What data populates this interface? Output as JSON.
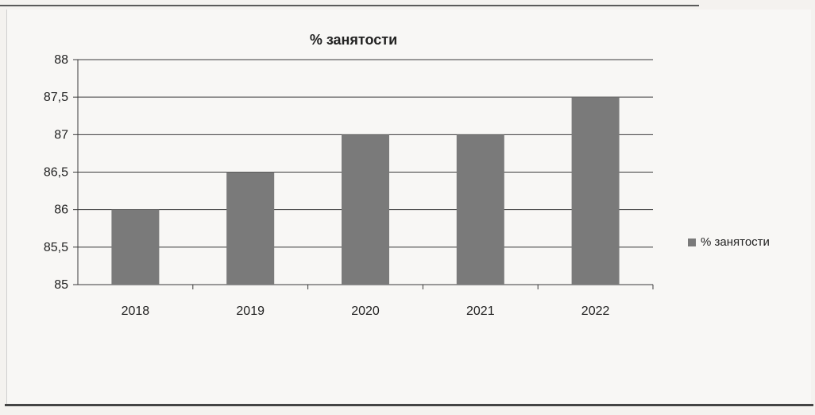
{
  "chart_data": {
    "type": "bar",
    "title": "% занятости",
    "categories": [
      "2018",
      "2019",
      "2020",
      "2021",
      "2022"
    ],
    "series": [
      {
        "name": "% занятости",
        "values": [
          86.0,
          86.5,
          87.0,
          87.0,
          87.5
        ],
        "color": "#7a7a7a"
      }
    ],
    "ylim": [
      85,
      88
    ],
    "yticks": [
      "85",
      "85,5",
      "86",
      "86,5",
      "87",
      "87,5",
      "88"
    ],
    "grid": true,
    "legend_position": "right"
  }
}
